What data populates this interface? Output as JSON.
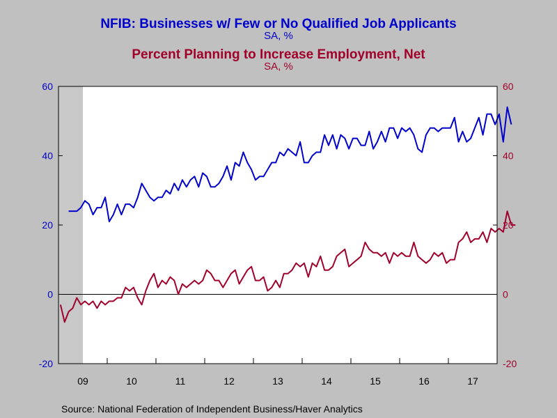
{
  "chart_data": {
    "type": "line",
    "titles": [
      {
        "text": "NFIB: Businesses w/ Few or No Qualified Job Applicants",
        "units": "SA, %",
        "color": "#0000cc"
      },
      {
        "text": "Percent Planning to Increase Employment, Net",
        "units": "SA, %",
        "color": "#a0002a"
      }
    ],
    "source": "Source:  National Federation of Independent Business/Haver Analytics",
    "x_start": "2009-01",
    "x_end": "2017-12",
    "x_ticks": [
      "09",
      "10",
      "11",
      "12",
      "13",
      "14",
      "15",
      "16",
      "17"
    ],
    "y_left": {
      "min": -20,
      "max": 60,
      "ticks": [
        -20,
        0,
        20,
        40,
        60
      ],
      "color": "#0000cc"
    },
    "y_right": {
      "min": -20,
      "max": 60,
      "ticks": [
        -20,
        0,
        20,
        40,
        60
      ],
      "color": "#a0002a"
    },
    "recession_shading": {
      "start": "2009-01",
      "end": "2009-06",
      "color": "#c8c8c8"
    },
    "zero_line": true,
    "series": [
      {
        "name": "NFIB: Businesses w/ Few or No Qualified Job Applicants",
        "color": "#0000cc",
        "axis": "left",
        "start": "2009-03",
        "values": [
          24,
          24,
          24,
          25,
          27,
          26,
          23,
          25,
          25,
          28,
          21,
          23,
          26,
          23,
          26,
          26,
          25,
          28,
          32,
          30,
          28,
          27,
          28,
          28,
          30,
          29,
          32,
          30,
          33,
          31,
          33,
          34,
          31,
          35,
          34,
          31,
          31,
          32,
          34,
          37,
          33,
          38,
          37,
          41,
          38,
          36,
          33,
          34,
          34,
          36,
          38,
          38,
          41,
          40,
          42,
          41,
          40,
          44,
          38,
          38,
          40,
          41,
          41,
          46,
          43,
          46,
          42,
          46,
          45,
          42,
          45,
          45,
          43,
          43,
          47,
          42,
          44,
          47,
          44,
          48,
          48,
          45,
          48,
          47,
          48,
          46,
          42,
          41,
          46,
          48,
          48,
          47,
          48,
          48,
          48,
          51,
          44,
          47,
          44,
          45,
          48,
          51,
          46,
          52,
          52,
          49,
          52,
          44,
          54,
          49
        ]
      },
      {
        "name": "Percent Planning to Increase Employment, Net",
        "color": "#a0002a",
        "axis": "right",
        "start": "2009-01",
        "values": [
          -3,
          -8,
          -5,
          -4,
          -1,
          -3,
          -2,
          -3,
          -2,
          -4,
          -2,
          -3,
          -2,
          -2,
          -1,
          -1,
          2,
          1,
          2,
          -1,
          -3,
          1,
          4,
          6,
          2,
          4,
          3,
          5,
          4,
          0,
          3,
          2,
          3,
          4,
          3,
          4,
          7,
          6,
          4,
          4,
          2,
          4,
          6,
          7,
          3,
          5,
          7,
          8,
          4,
          4,
          5,
          1,
          2,
          4,
          2,
          6,
          6,
          7,
          9,
          8,
          9,
          5,
          9,
          8,
          11,
          7,
          7,
          8,
          11,
          12,
          13,
          8,
          9,
          10,
          11,
          15,
          13,
          12,
          12,
          11,
          12,
          9,
          12,
          11,
          12,
          11,
          11,
          15,
          11,
          10,
          9,
          10,
          12,
          11,
          12,
          9,
          10,
          10,
          15,
          16,
          18,
          15,
          16,
          16,
          18,
          15,
          19,
          18,
          19,
          18,
          24,
          20,
          20
        ]
      }
    ]
  }
}
